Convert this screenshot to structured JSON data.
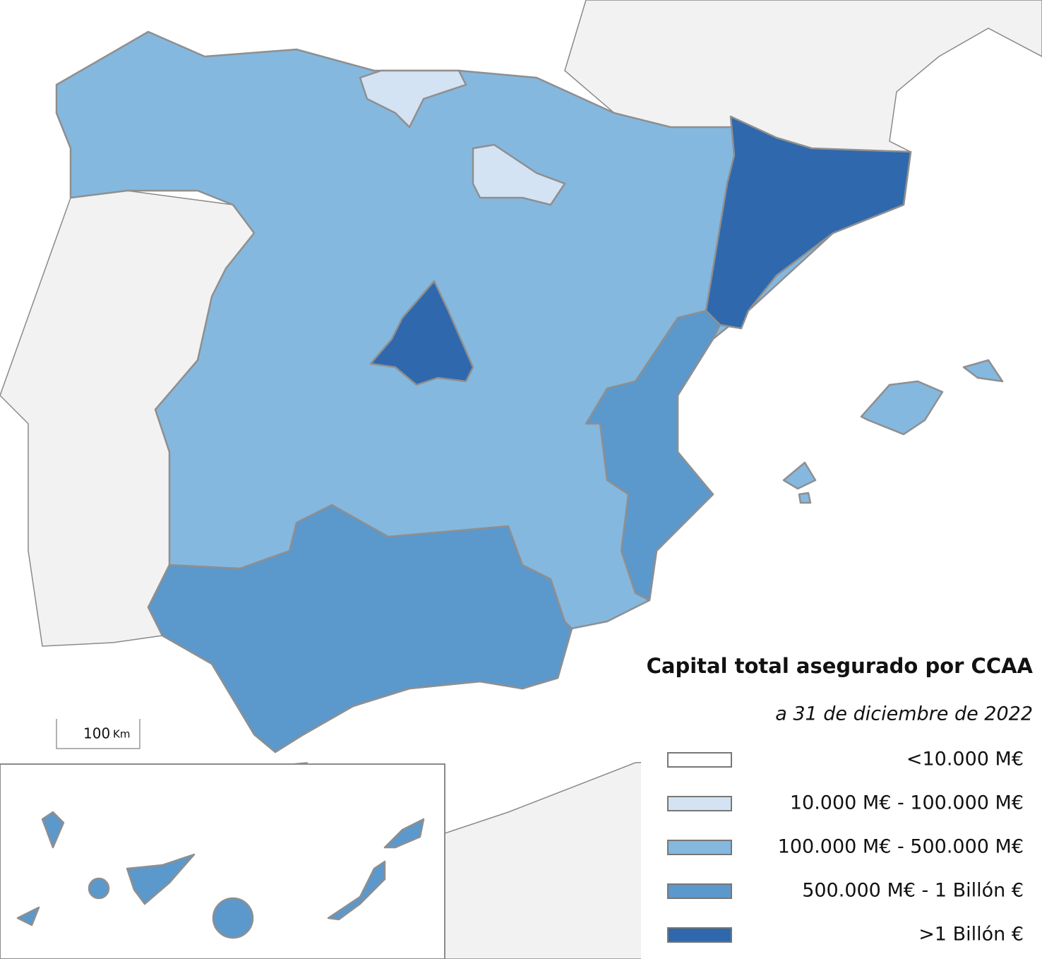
{
  "title": "Capital total asegurado por CCAA",
  "subtitle": "a 31 de diciembre de 2022",
  "legend": [
    {
      "label": "<10.000 M€",
      "color": "#ffffff"
    },
    {
      "label": "10.000 M€ - 100.000 M€",
      "color": "#d4e3f3"
    },
    {
      "label": "100.000 M€ - 500.000 M€",
      "color": "#84b8df"
    },
    {
      "label": "500.000 M€ - 1 Billón €",
      "color": "#5b98cc"
    },
    {
      "label": ">1 Billón €",
      "color": "#2f68ad"
    }
  ],
  "scale_bar": {
    "value": "100",
    "unit": "Km"
  }
}
